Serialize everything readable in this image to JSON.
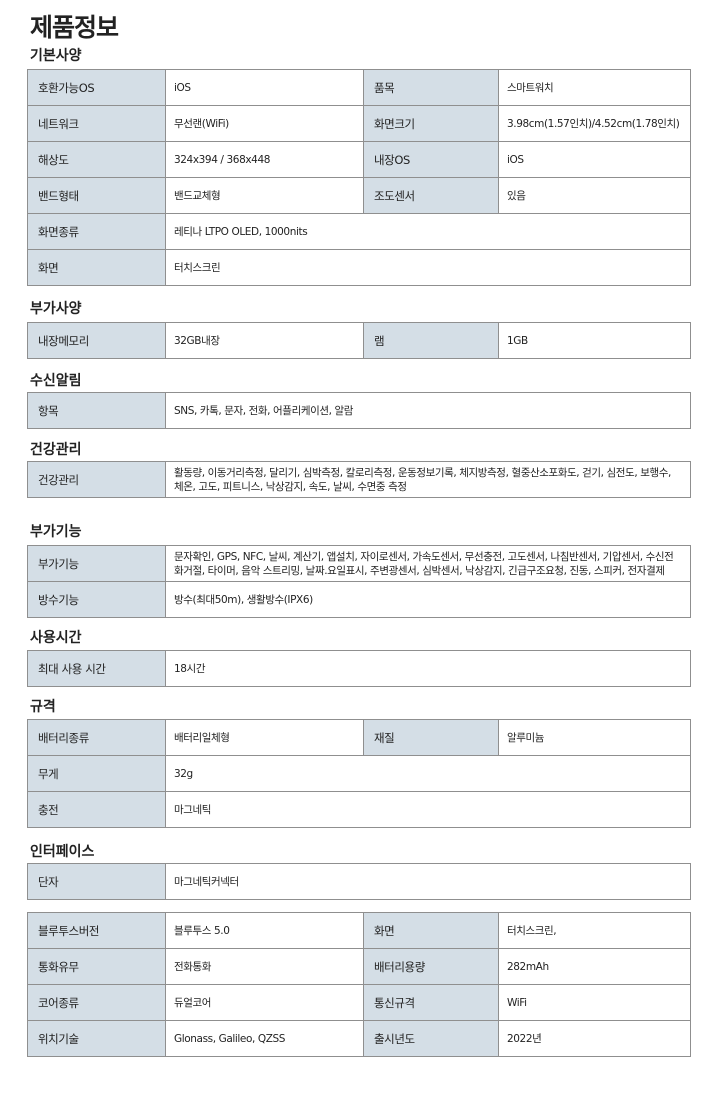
{
  "title": "제품정보",
  "sections": [
    {
      "heading": "기본사양",
      "rows": [
        [
          "호환가능OS",
          "iOS",
          "품목",
          "스마트워치"
        ],
        [
          "네트워크",
          "무선랜(WiFi)",
          "화면크기",
          "3.98cm(1.57인치)/4.52cm(1.78인치)"
        ],
        [
          "해상도",
          "324x394 / 368x448",
          "내장OS",
          "iOS"
        ],
        [
          "밴드형태",
          "밴드교체형",
          "조도센서",
          "있음"
        ],
        [
          "화면종류",
          "레티나 LTPO OLED, 1000nits"
        ],
        [
          "화면",
          "터치스크린"
        ]
      ]
    },
    {
      "heading": "부가사양",
      "rows": [
        [
          "내장메모리",
          "32GB내장",
          "램",
          "1GB"
        ]
      ]
    },
    {
      "heading": "수신알림",
      "rows": [
        [
          "항목",
          "SNS, 카톡, 문자, 전화, 어플리케이션, 알람"
        ]
      ]
    },
    {
      "heading": "건강관리",
      "rows": [
        [
          "건강관리",
          "활동량, 이동거리측정, 달리기, 심박측정, 칼로리측정, 운동정보기록, 체지방측정, 혈중산소포화도, 걷기, 심전도, 보행수, 체온, 고도, 피트니스, 낙상감지, 속도, 날씨, 수면중 측정"
        ]
      ]
    },
    {
      "heading": "부가기능",
      "rows": [
        [
          "부가기능",
          "문자확인, GPS, NFC, 날씨, 계산기, 앱설치, 자이로센서, 가속도센서, 무선충전, 고도센서, 나침반센서, 기압센서, 수신전화거절, 타이머, 음악 스트리밍, 날짜.요일표시, 주변광센서, 심박센서, 낙상감지, 긴급구조요청, 진동, 스피커, 전자결제"
        ],
        [
          "방수기능",
          "방수(최대50m), 생활방수(IPX6)"
        ]
      ]
    },
    {
      "heading": "사용시간",
      "rows": [
        [
          "최대 사용 시간",
          "18시간"
        ]
      ]
    },
    {
      "heading": "규격",
      "rows": [
        [
          "배터리종류",
          "배터리일체형",
          "재질",
          "알루미늄"
        ],
        [
          "무게",
          "32g"
        ],
        [
          "충전",
          "마그네틱"
        ]
      ]
    },
    {
      "heading": "인터페이스",
      "rows": [
        [
          "단자",
          "마그네틱커넥터"
        ]
      ]
    },
    {
      "rows": [
        [
          "블루투스버전",
          "블루투스 5.0",
          "화면",
          "터치스크린,"
        ],
        [
          "통화유무",
          "전화통화",
          "배터리용량",
          "282mAh"
        ],
        [
          "코어종류",
          "듀얼코어",
          "통신규격",
          "WiFi"
        ],
        [
          "위치기술",
          "Glonass, Galileo, QZSS",
          "출시년도",
          "2022년"
        ]
      ]
    }
  ]
}
